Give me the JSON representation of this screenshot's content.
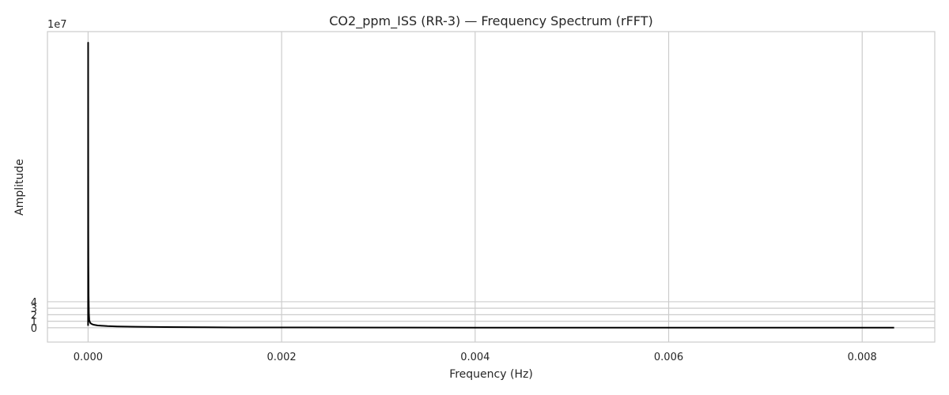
{
  "chart_data": {
    "type": "line",
    "title": "CO2_ppm_ISS (RR-3) — Frequency Spectrum (rFFT)",
    "xlabel": "Frequency (Hz)",
    "ylabel": "Amplitude",
    "y_scale_text": "1e7",
    "xlim": [
      -0.00042,
      0.00875
    ],
    "ylim": [
      -2.2,
      45.5
    ],
    "x_ticks": [
      0.0,
      0.002,
      0.004,
      0.006,
      0.008
    ],
    "x_tick_labels": [
      "0.000",
      "0.002",
      "0.004",
      "0.006",
      "0.008"
    ],
    "y_ticks": [
      0,
      1,
      2,
      3,
      4
    ],
    "y_tick_labels": [
      "0",
      "1",
      "2",
      "3",
      "4"
    ],
    "y_unit_multiplier": 10000000,
    "grid": true,
    "legend": "none",
    "line_color": "#000000",
    "series": [
      {
        "x": [
          0.0,
          5e-07,
          1e-06,
          2e-06,
          3e-06,
          5e-06,
          8e-06,
          1.2e-05,
          1.8e-05,
          2.5e-05,
          4e-05,
          6e-05,
          0.0001,
          0.00015,
          0.0002,
          0.0003,
          0.0005,
          0.0008,
          0.0012,
          0.0015,
          0.002,
          0.003,
          0.004,
          0.005,
          0.006,
          0.007,
          0.008,
          0.00833
        ],
        "y": [
          0.3,
          43.8,
          30.0,
          15.0,
          9.5,
          5.0,
          2.2,
          1.2,
          0.9,
          0.7,
          0.55,
          0.45,
          0.35,
          0.3,
          0.25,
          0.2,
          0.15,
          0.1,
          0.07,
          0.05,
          0.04,
          0.03,
          0.02,
          0.02,
          0.015,
          0.012,
          0.01,
          0.01
        ]
      }
    ]
  }
}
